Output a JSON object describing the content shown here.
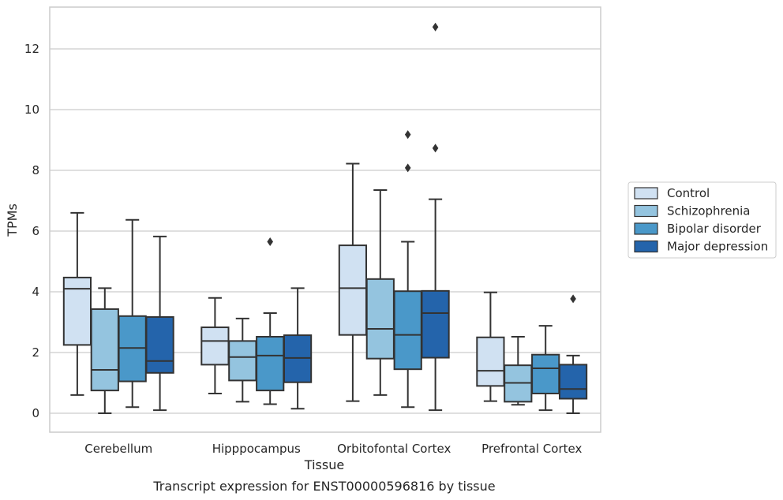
{
  "chart_data": {
    "type": "box",
    "title": "Transcript expression for ENST00000596816 by tissue",
    "xlabel": "Tissue",
    "ylabel": "TPMs",
    "ylim": [
      -0.6,
      13.4
    ],
    "yticks": [
      0,
      2,
      4,
      6,
      8,
      10,
      12
    ],
    "grid": "horizontal",
    "legend_position": "right",
    "categories": [
      "Cerebellum",
      "Hipppocampus",
      "Orbitofontal Cortex",
      "Prefrontal Cortex"
    ],
    "series": [
      {
        "name": "Control",
        "color": "#d0e1f2",
        "boxes": [
          {
            "whislo": 0.6,
            "q1": 2.25,
            "med": 4.1,
            "q3": 4.47,
            "whishi": 6.6,
            "fliers": []
          },
          {
            "whislo": 0.65,
            "q1": 1.6,
            "med": 2.38,
            "q3": 2.83,
            "whishi": 3.8,
            "fliers": []
          },
          {
            "whislo": 0.4,
            "q1": 2.58,
            "med": 4.12,
            "q3": 5.53,
            "whishi": 8.22,
            "fliers": []
          },
          {
            "whislo": 0.4,
            "q1": 0.9,
            "med": 1.4,
            "q3": 2.5,
            "whishi": 3.98,
            "fliers": []
          }
        ]
      },
      {
        "name": "Schizophrenia",
        "color": "#94c4df",
        "boxes": [
          {
            "whislo": 0.0,
            "q1": 0.75,
            "med": 1.43,
            "q3": 3.43,
            "whishi": 4.12,
            "fliers": []
          },
          {
            "whislo": 0.38,
            "q1": 1.08,
            "med": 1.85,
            "q3": 2.38,
            "whishi": 3.12,
            "fliers": []
          },
          {
            "whislo": 0.6,
            "q1": 1.8,
            "med": 2.78,
            "q3": 4.42,
            "whishi": 7.35,
            "fliers": []
          },
          {
            "whislo": 0.28,
            "q1": 0.38,
            "med": 1.0,
            "q3": 1.58,
            "whishi": 2.52,
            "fliers": []
          }
        ]
      },
      {
        "name": "Bipolar disorder",
        "color": "#4a98c9",
        "boxes": [
          {
            "whislo": 0.2,
            "q1": 1.05,
            "med": 2.15,
            "q3": 3.2,
            "whishi": 6.37,
            "fliers": []
          },
          {
            "whislo": 0.3,
            "q1": 0.75,
            "med": 1.9,
            "q3": 2.52,
            "whishi": 3.3,
            "fliers": [
              5.65
            ]
          },
          {
            "whislo": 0.2,
            "q1": 1.45,
            "med": 2.58,
            "q3": 4.02,
            "whishi": 5.65,
            "fliers": [
              8.08,
              9.18
            ]
          },
          {
            "whislo": 0.1,
            "q1": 0.65,
            "med": 1.48,
            "q3": 1.93,
            "whishi": 2.88,
            "fliers": []
          }
        ]
      },
      {
        "name": "Major depression",
        "color": "#2464ab",
        "boxes": [
          {
            "whislo": 0.1,
            "q1": 1.33,
            "med": 1.72,
            "q3": 3.17,
            "whishi": 5.82,
            "fliers": []
          },
          {
            "whislo": 0.15,
            "q1": 1.02,
            "med": 1.82,
            "q3": 2.57,
            "whishi": 4.12,
            "fliers": []
          },
          {
            "whislo": 0.1,
            "q1": 1.83,
            "med": 3.3,
            "q3": 4.03,
            "whishi": 7.05,
            "fliers": [
              8.73,
              12.72
            ]
          },
          {
            "whislo": 0.0,
            "q1": 0.48,
            "med": 0.8,
            "q3": 1.6,
            "whishi": 1.9,
            "fliers": [
              3.77
            ]
          }
        ]
      }
    ]
  }
}
